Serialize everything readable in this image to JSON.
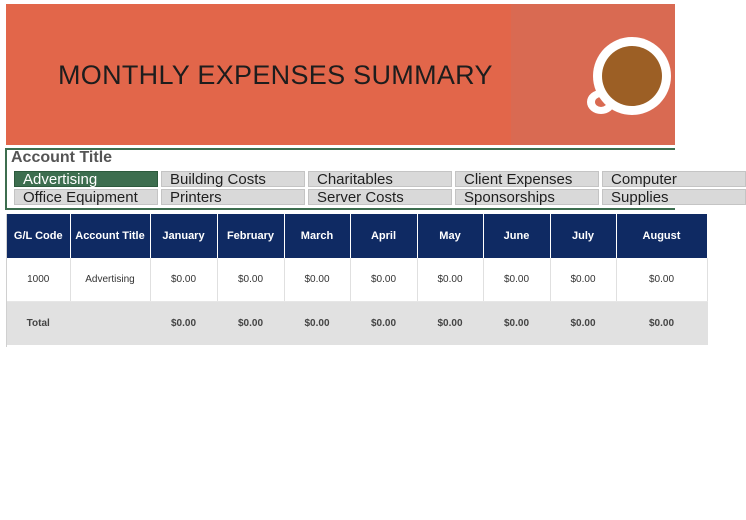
{
  "header": {
    "title": "MONTHLY EXPENSES SUMMARY"
  },
  "slicer": {
    "title": "Account Title",
    "row1": [
      "Advertising",
      "Building Costs",
      "Charitables",
      "Client Expenses",
      "Computer"
    ],
    "row2": [
      "Office Equipment",
      "Printers",
      "Server Costs",
      "Sponsorships",
      "Supplies"
    ],
    "selected": "Advertising"
  },
  "table": {
    "headers": [
      "G/L Code",
      "Account Title",
      "January",
      "February",
      "March",
      "April",
      "May",
      "June",
      "July",
      "August"
    ],
    "row": [
      "1000",
      "Advertising",
      "$0.00",
      "$0.00",
      "$0.00",
      "$0.00",
      "$0.00",
      "$0.00",
      "$0.00",
      "$0.00"
    ],
    "total": [
      "Total",
      "",
      "$0.00",
      "$0.00",
      "$0.00",
      "$0.00",
      "$0.00",
      "$0.00",
      "$0.00",
      "$0.00"
    ]
  },
  "colors": {
    "banner": "#e2664a",
    "header_bg": "#0f2a63",
    "selected": "#3d6e4f",
    "coffee": "#9c5f25"
  }
}
